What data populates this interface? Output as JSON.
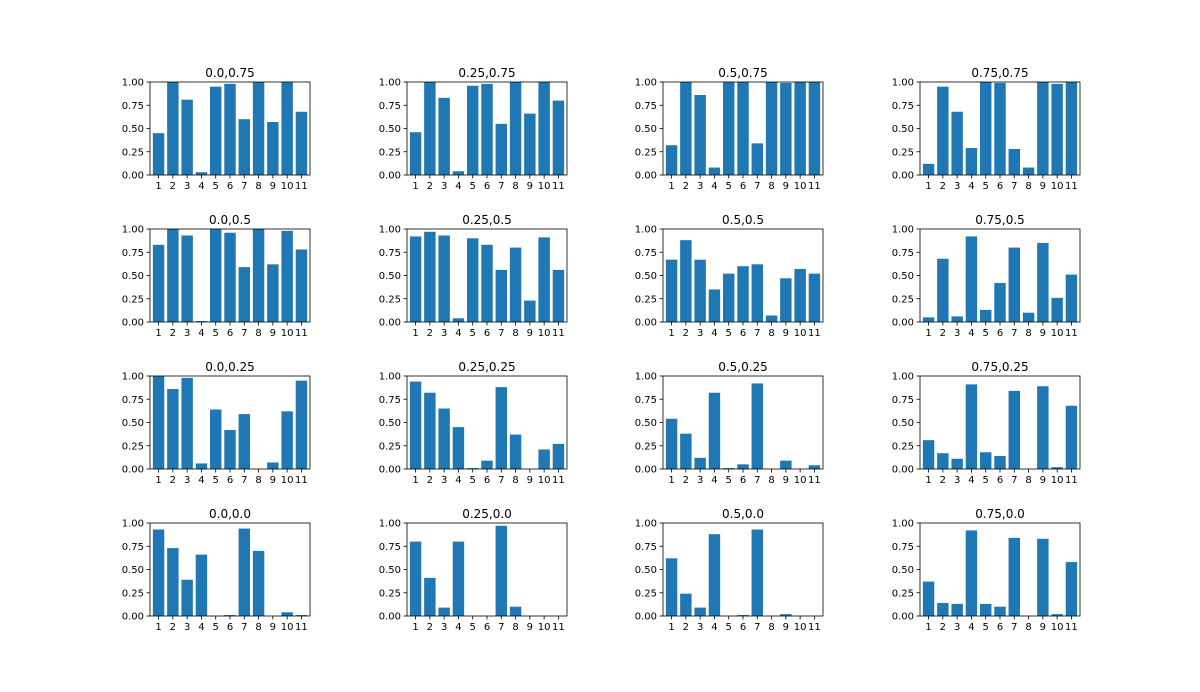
{
  "style": {
    "bar_color": "#1f77b4",
    "axes_color": "#000000",
    "background": "#ffffff"
  },
  "chart_data": [
    {
      "type": "bar",
      "title": "0.0,0.75",
      "categories": [
        "1",
        "2",
        "3",
        "4",
        "5",
        "6",
        "7",
        "8",
        "9",
        "10",
        "11"
      ],
      "values": [
        0.45,
        1.0,
        0.81,
        0.03,
        0.95,
        0.98,
        0.6,
        1.0,
        0.57,
        1.0,
        0.68
      ],
      "ylim": [
        0,
        1
      ],
      "yticks": [
        "0.00",
        "0.25",
        "0.50",
        "0.75",
        "1.00"
      ],
      "grid": false
    },
    {
      "type": "bar",
      "title": "0.25,0.75",
      "categories": [
        "1",
        "2",
        "3",
        "4",
        "5",
        "6",
        "7",
        "8",
        "9",
        "10",
        "11"
      ],
      "values": [
        0.46,
        1.0,
        0.83,
        0.04,
        0.96,
        0.98,
        0.55,
        1.0,
        0.66,
        1.0,
        0.8
      ],
      "ylim": [
        0,
        1
      ],
      "yticks": [
        "0.00",
        "0.25",
        "0.50",
        "0.75",
        "1.00"
      ],
      "grid": false
    },
    {
      "type": "bar",
      "title": "0.5,0.75",
      "categories": [
        "1",
        "2",
        "3",
        "4",
        "5",
        "6",
        "7",
        "8",
        "9",
        "10",
        "11"
      ],
      "values": [
        0.32,
        1.0,
        0.86,
        0.08,
        1.0,
        1.0,
        0.34,
        1.0,
        0.99,
        1.0,
        1.0
      ],
      "ylim": [
        0,
        1
      ],
      "yticks": [
        "0.00",
        "0.25",
        "0.50",
        "0.75",
        "1.00"
      ],
      "grid": false
    },
    {
      "type": "bar",
      "title": "0.75,0.75",
      "categories": [
        "1",
        "2",
        "3",
        "4",
        "5",
        "6",
        "7",
        "8",
        "9",
        "10",
        "11"
      ],
      "values": [
        0.12,
        0.95,
        0.68,
        0.29,
        1.0,
        0.99,
        0.28,
        0.08,
        1.0,
        0.98,
        1.0
      ],
      "ylim": [
        0,
        1
      ],
      "yticks": [
        "0.00",
        "0.25",
        "0.50",
        "0.75",
        "1.00"
      ],
      "grid": false
    },
    {
      "type": "bar",
      "title": "0.0,0.5",
      "categories": [
        "1",
        "2",
        "3",
        "4",
        "5",
        "6",
        "7",
        "8",
        "9",
        "10",
        "11"
      ],
      "values": [
        0.83,
        1.0,
        0.93,
        0.01,
        1.0,
        0.96,
        0.59,
        1.0,
        0.62,
        0.98,
        0.78
      ],
      "ylim": [
        0,
        1
      ],
      "yticks": [
        "0.00",
        "0.25",
        "0.50",
        "0.75",
        "1.00"
      ],
      "grid": false
    },
    {
      "type": "bar",
      "title": "0.25,0.5",
      "categories": [
        "1",
        "2",
        "3",
        "4",
        "5",
        "6",
        "7",
        "8",
        "9",
        "10",
        "11"
      ],
      "values": [
        0.92,
        0.97,
        0.93,
        0.04,
        0.9,
        0.83,
        0.56,
        0.8,
        0.23,
        0.91,
        0.56
      ],
      "ylim": [
        0,
        1
      ],
      "yticks": [
        "0.00",
        "0.25",
        "0.50",
        "0.75",
        "1.00"
      ],
      "grid": false
    },
    {
      "type": "bar",
      "title": "0.5,0.5",
      "categories": [
        "1",
        "2",
        "3",
        "4",
        "5",
        "6",
        "7",
        "8",
        "9",
        "10",
        "11"
      ],
      "values": [
        0.67,
        0.88,
        0.67,
        0.35,
        0.52,
        0.6,
        0.62,
        0.07,
        0.47,
        0.57,
        0.52
      ],
      "ylim": [
        0,
        1
      ],
      "yticks": [
        "0.00",
        "0.25",
        "0.50",
        "0.75",
        "1.00"
      ],
      "grid": false
    },
    {
      "type": "bar",
      "title": "0.75,0.5",
      "categories": [
        "1",
        "2",
        "3",
        "4",
        "5",
        "6",
        "7",
        "8",
        "9",
        "10",
        "11"
      ],
      "values": [
        0.05,
        0.68,
        0.06,
        0.92,
        0.13,
        0.42,
        0.8,
        0.1,
        0.85,
        0.26,
        0.51
      ],
      "ylim": [
        0,
        1
      ],
      "yticks": [
        "0.00",
        "0.25",
        "0.50",
        "0.75",
        "1.00"
      ],
      "grid": false
    },
    {
      "type": "bar",
      "title": "0.0,0.25",
      "categories": [
        "1",
        "2",
        "3",
        "4",
        "5",
        "6",
        "7",
        "8",
        "9",
        "10",
        "11"
      ],
      "values": [
        1.0,
        0.86,
        0.98,
        0.06,
        0.64,
        0.42,
        0.59,
        0.0,
        0.07,
        0.62,
        0.95
      ],
      "ylim": [
        0,
        1
      ],
      "yticks": [
        "0.00",
        "0.25",
        "0.50",
        "0.75",
        "1.00"
      ],
      "grid": false
    },
    {
      "type": "bar",
      "title": "0.25,0.25",
      "categories": [
        "1",
        "2",
        "3",
        "4",
        "5",
        "6",
        "7",
        "8",
        "9",
        "10",
        "11"
      ],
      "values": [
        0.94,
        0.82,
        0.65,
        0.45,
        0.01,
        0.09,
        0.88,
        0.37,
        0.0,
        0.21,
        0.27
      ],
      "ylim": [
        0,
        1
      ],
      "yticks": [
        "0.00",
        "0.25",
        "0.50",
        "0.75",
        "1.00"
      ],
      "grid": false
    },
    {
      "type": "bar",
      "title": "0.5,0.25",
      "categories": [
        "1",
        "2",
        "3",
        "4",
        "5",
        "6",
        "7",
        "8",
        "9",
        "10",
        "11"
      ],
      "values": [
        0.54,
        0.38,
        0.12,
        0.82,
        0.01,
        0.05,
        0.92,
        0.0,
        0.09,
        0.0,
        0.04
      ],
      "ylim": [
        0,
        1
      ],
      "yticks": [
        "0.00",
        "0.25",
        "0.50",
        "0.75",
        "1.00"
      ],
      "grid": false
    },
    {
      "type": "bar",
      "title": "0.75,0.25",
      "categories": [
        "1",
        "2",
        "3",
        "4",
        "5",
        "6",
        "7",
        "8",
        "9",
        "10",
        "11"
      ],
      "values": [
        0.31,
        0.17,
        0.11,
        0.91,
        0.18,
        0.14,
        0.84,
        0.0,
        0.89,
        0.02,
        0.68
      ],
      "ylim": [
        0,
        1
      ],
      "yticks": [
        "0.00",
        "0.25",
        "0.50",
        "0.75",
        "1.00"
      ],
      "grid": false
    },
    {
      "type": "bar",
      "title": "0.0,0.0",
      "categories": [
        "1",
        "2",
        "3",
        "4",
        "5",
        "6",
        "7",
        "8",
        "9",
        "10",
        "11"
      ],
      "values": [
        0.93,
        0.73,
        0.39,
        0.66,
        0.0,
        0.01,
        0.94,
        0.7,
        0.0,
        0.04,
        0.01
      ],
      "ylim": [
        0,
        1
      ],
      "yticks": [
        "0.00",
        "0.25",
        "0.50",
        "0.75",
        "1.00"
      ],
      "grid": false
    },
    {
      "type": "bar",
      "title": "0.25,0.0",
      "categories": [
        "1",
        "2",
        "3",
        "4",
        "5",
        "6",
        "7",
        "8",
        "9",
        "10",
        "11"
      ],
      "values": [
        0.8,
        0.41,
        0.09,
        0.8,
        0.0,
        0.0,
        0.97,
        0.1,
        0.0,
        0.0,
        0.0
      ],
      "ylim": [
        0,
        1
      ],
      "yticks": [
        "0.00",
        "0.25",
        "0.50",
        "0.75",
        "1.00"
      ],
      "grid": false
    },
    {
      "type": "bar",
      "title": "0.5,0.0",
      "categories": [
        "1",
        "2",
        "3",
        "4",
        "5",
        "6",
        "7",
        "8",
        "9",
        "10",
        "11"
      ],
      "values": [
        0.62,
        0.24,
        0.09,
        0.88,
        0.0,
        0.01,
        0.93,
        0.0,
        0.02,
        0.0,
        0.0
      ],
      "ylim": [
        0,
        1
      ],
      "yticks": [
        "0.00",
        "0.25",
        "0.50",
        "0.75",
        "1.00"
      ],
      "grid": false
    },
    {
      "type": "bar",
      "title": "0.75,0.0",
      "categories": [
        "1",
        "2",
        "3",
        "4",
        "5",
        "6",
        "7",
        "8",
        "9",
        "10",
        "11"
      ],
      "values": [
        0.37,
        0.14,
        0.13,
        0.92,
        0.13,
        0.1,
        0.84,
        0.0,
        0.83,
        0.02,
        0.58
      ],
      "ylim": [
        0,
        1
      ],
      "yticks": [
        "0.00",
        "0.25",
        "0.50",
        "0.75",
        "1.00"
      ],
      "grid": false
    }
  ]
}
